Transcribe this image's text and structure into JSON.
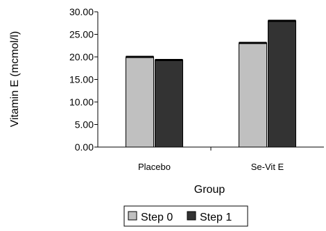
{
  "chart_data": {
    "type": "bar",
    "categories": [
      "Placebo",
      "Se-Vit E"
    ],
    "series": [
      {
        "name": "Step 0",
        "values": [
          20.0,
          23.1
        ],
        "color": "#c0c0c0"
      },
      {
        "name": "Step 1",
        "values": [
          19.3,
          28.0
        ],
        "color": "#333333"
      }
    ],
    "yticks": [
      "0.00",
      "5.00",
      "10.00",
      "15.00",
      "20.00",
      "25.00",
      "30.00"
    ],
    "ylim": [
      0,
      30
    ],
    "xlabel": "Group",
    "ylabel": "Vitamin E (mcmol/l)",
    "legend": "bottom",
    "grid": false
  }
}
